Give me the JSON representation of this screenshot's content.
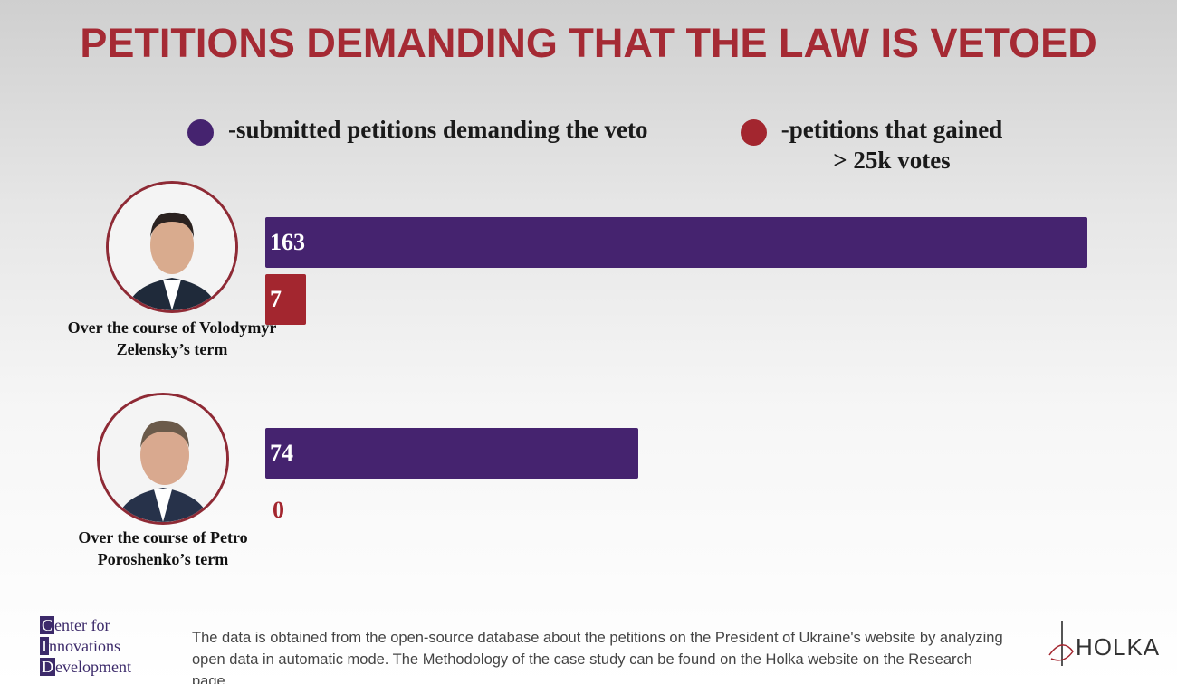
{
  "chart_data": {
    "type": "bar",
    "orientation": "horizontal",
    "title": "PETITIONS DEMANDING THAT THE LAW IS VETOED",
    "categories": [
      "Over the course of Volodymyr Zelensky’s term",
      "Over the course of Petro Poroshenko’s term"
    ],
    "series": [
      {
        "name": "-submitted petitions demanding the veto",
        "color": "#45236f",
        "values": [
          163,
          74
        ]
      },
      {
        "name": "-petitions that gained > 25k votes",
        "color": "#a3262f",
        "values": [
          7,
          0
        ]
      }
    ]
  },
  "footer": {
    "logo_lines": [
      "Center for",
      "Innovations",
      "Development"
    ],
    "note": "The data is obtained from the open-source database about the petitions on the President of Ukraine's website by analyzing open data in automatic mode. The Methodology of the case study can be found on the Holka website on the Research page.",
    "brand": "HOLKA"
  }
}
